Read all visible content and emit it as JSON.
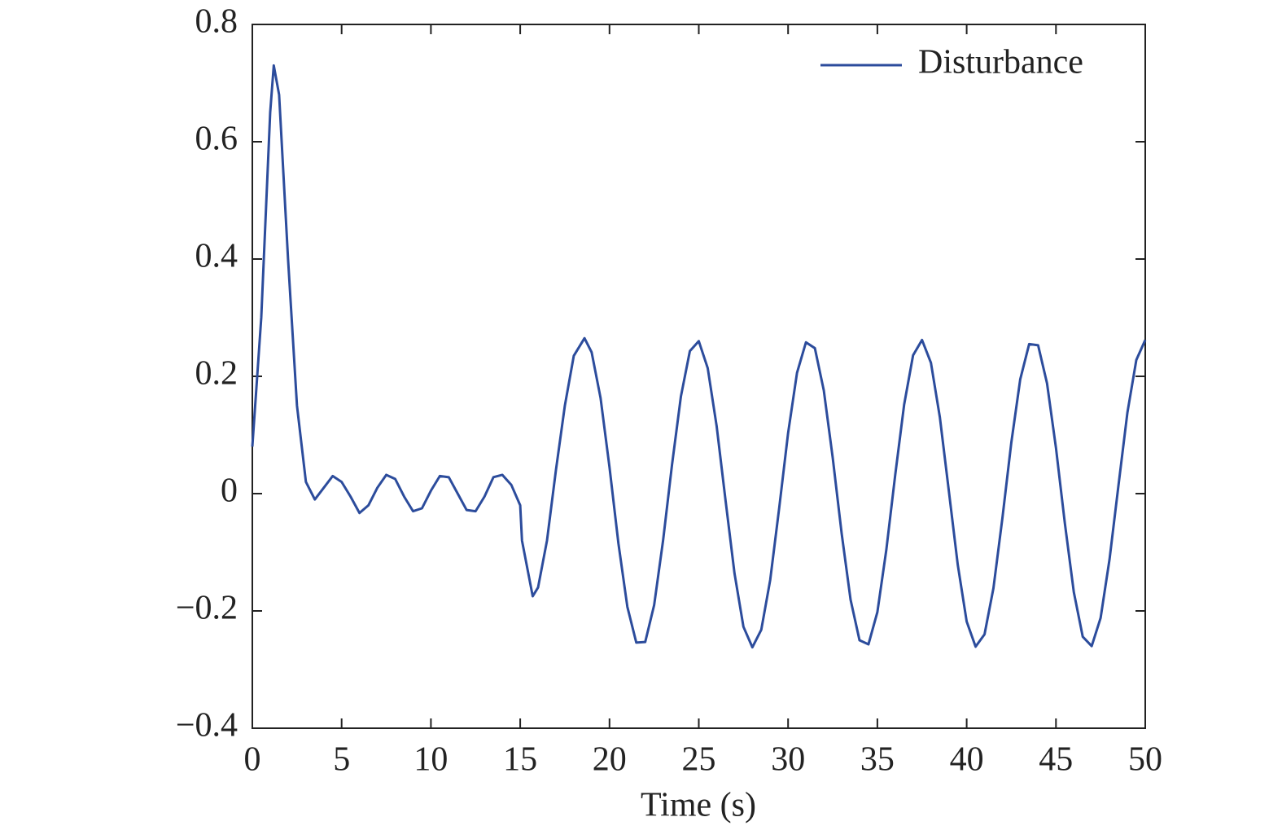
{
  "chart_data": {
    "type": "line",
    "xlabel": "Time (s)",
    "x": [
      0,
      0.5,
      1,
      1.2,
      1.5,
      2,
      2.5,
      3,
      3.5,
      4,
      4.5,
      5,
      5.5,
      6,
      6.5,
      7,
      7.5,
      8,
      8.5,
      9,
      9.5,
      10,
      10.5,
      11,
      11.5,
      12,
      12.5,
      13,
      13.5,
      14,
      14.5,
      15,
      15.1,
      15.7,
      16,
      16.5,
      17,
      17.5,
      18,
      18.6,
      19,
      19.5,
      20,
      20.5,
      21,
      21.5,
      22,
      22.5,
      23,
      23.5,
      24,
      24.5,
      25,
      25.5,
      26,
      26.5,
      27,
      27.5,
      28,
      28.5,
      29,
      29.5,
      30,
      30.5,
      31,
      31.5,
      32,
      32.5,
      33,
      33.5,
      34,
      34.5,
      35,
      35.5,
      36,
      36.5,
      37,
      37.5,
      38,
      38.5,
      39,
      39.5,
      40,
      40.5,
      41,
      41.5,
      42,
      42.5,
      43,
      43.5,
      44,
      44.5,
      45,
      45.5,
      46,
      46.5,
      47,
      47.5,
      48,
      48.5,
      49,
      49.5,
      50
    ],
    "series": [
      {
        "name": "Disturbance",
        "color": "#2c4c9c",
        "values": [
          0.08,
          0.3,
          0.65,
          0.73,
          0.68,
          0.4,
          0.15,
          0.02,
          -0.01,
          0.01,
          0.03,
          0.02,
          -0.005,
          -0.033,
          -0.02,
          0.01,
          0.032,
          0.025,
          -0.005,
          -0.03,
          -0.025,
          0.005,
          0.03,
          0.028,
          0,
          -0.028,
          -0.03,
          -0.005,
          0.028,
          0.032,
          0.015,
          -0.02,
          -0.08,
          -0.175,
          -0.16,
          -0.08,
          0.04,
          0.15,
          0.235,
          0.265,
          0.241,
          0.163,
          0.045,
          -0.085,
          -0.193,
          -0.254,
          -0.253,
          -0.19,
          -0.08,
          0.049,
          0.166,
          0.243,
          0.26,
          0.214,
          0.115,
          -0.012,
          -0.136,
          -0.227,
          -0.262,
          -0.232,
          -0.147,
          -0.025,
          0.103,
          0.206,
          0.258,
          0.248,
          0.176,
          0.061,
          -0.068,
          -0.181,
          -0.25,
          -0.257,
          -0.202,
          -0.096,
          0.032,
          0.152,
          0.236,
          0.262,
          0.223,
          0.13,
          0.005,
          -0.121,
          -0.218,
          -0.261,
          -0.24,
          -0.161,
          -0.042,
          0.087,
          0.195,
          0.255,
          0.253,
          0.188,
          0.078,
          -0.051,
          -0.168,
          -0.244,
          -0.26,
          -0.212,
          -0.112,
          0.014,
          0.138,
          0.228,
          0.262
        ]
      }
    ],
    "xlim": [
      0,
      50
    ],
    "xticks": [
      0,
      5,
      10,
      15,
      20,
      25,
      30,
      35,
      40,
      45,
      50
    ],
    "ylim": [
      -0.4,
      0.8
    ],
    "yticks": [
      {
        "value": -0.4,
        "label": "−0.4"
      },
      {
        "value": -0.2,
        "label": "−0.2"
      },
      0,
      0.2,
      0.4,
      0.6,
      0.8
    ],
    "legend": "upper right",
    "grid": false
  }
}
